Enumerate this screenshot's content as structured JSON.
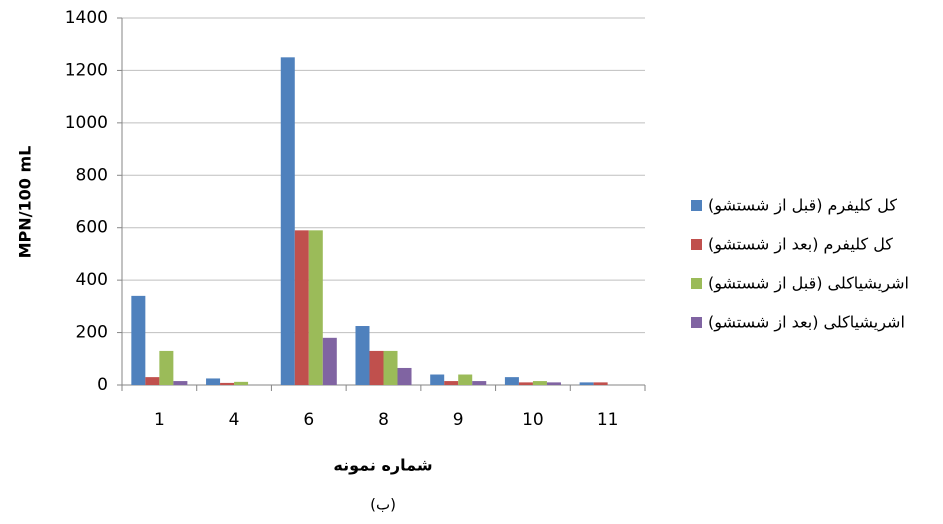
{
  "chart_data": {
    "type": "bar",
    "y_label": "MPN/100 mL",
    "x_label": "شماره نمونه",
    "caption": "(ب)",
    "categories": [
      "1",
      "4",
      "6",
      "8",
      "9",
      "10",
      "11"
    ],
    "series": [
      {
        "name": "کل کلیفرم (قبل از شستشو)",
        "color": "#4f81bd",
        "values": [
          340,
          25,
          1250,
          225,
          40,
          30,
          10
        ]
      },
      {
        "name": "کل کلیفرم (بعد از شستشو)",
        "color": "#c0504d",
        "values": [
          30,
          8,
          590,
          130,
          15,
          10,
          10
        ]
      },
      {
        "name": "اشریشیاکلی (قبل از شستشو)",
        "color": "#9bbb59",
        "values": [
          130,
          12,
          590,
          130,
          40,
          15,
          0
        ]
      },
      {
        "name": "اشریشیاکلی (بعد از شستشو)",
        "color": "#8064a2",
        "values": [
          15,
          0,
          180,
          65,
          15,
          10,
          0
        ]
      }
    ],
    "ylim": [
      0,
      1400
    ],
    "yticks": [
      0,
      200,
      400,
      600,
      800,
      1000,
      1200,
      1400
    ],
    "grid": true,
    "legend": "right"
  }
}
